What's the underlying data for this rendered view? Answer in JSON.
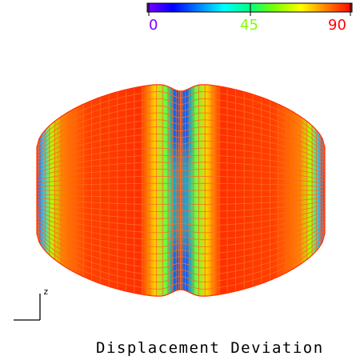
{
  "colorbar": {
    "min_label": "0",
    "mid_label": "45",
    "max_label": "90",
    "range": [
      0,
      90
    ],
    "min_label_color": "#8000ff",
    "mid_label_color": "#80ff00",
    "max_label_color": "#ff0000",
    "gradient_stops": [
      "#7f00ff",
      "#0000ff",
      "#0080ff",
      "#00ffff",
      "#00ff80",
      "#80ff00",
      "#ffff00",
      "#ff8000",
      "#ff0000"
    ]
  },
  "surface": {
    "type": "mesh-surface",
    "dominant_color": "#ff4000",
    "wire_color": "#ff6a20"
  },
  "axis": {
    "label": "z"
  },
  "caption": "Displacement Deviation"
}
